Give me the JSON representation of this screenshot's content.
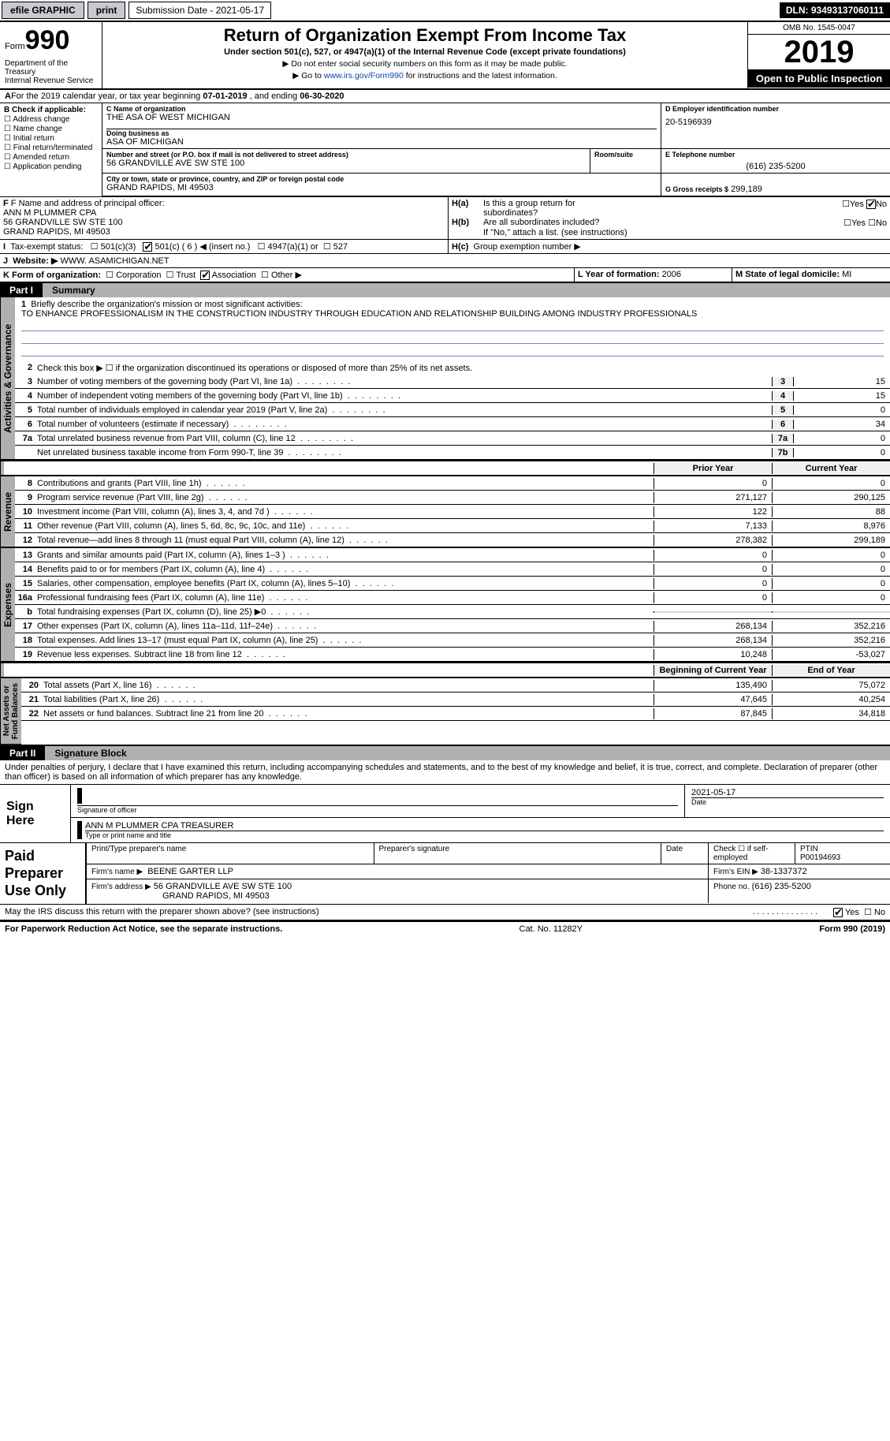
{
  "topbar": {
    "efile": "efile GRAPHIC",
    "print": "print",
    "submission": "Submission Date - 2021-05-17",
    "dln": "DLN: 93493137060111"
  },
  "header": {
    "form_word": "Form",
    "form_num": "990",
    "dept": "Department of the Treasury\nInternal Revenue Service",
    "title": "Return of Organization Exempt From Income Tax",
    "sub": "Under section 501(c), 527, or 4947(a)(1) of the Internal Revenue Code (except private foundations)",
    "note1": "Do not enter social security numbers on this form as it may be made public.",
    "note2_pre": "Go to ",
    "note2_link": "www.irs.gov/Form990",
    "note2_post": " for instructions and the latest information.",
    "omb": "OMB No. 1545-0047",
    "year": "2019",
    "open": "Open to Public Inspection"
  },
  "secA": {
    "text_pre": "For the 2019 calendar year, or tax year beginning ",
    "begin": "07-01-2019",
    "mid": " , and ending ",
    "end": "06-30-2020"
  },
  "boxB": {
    "label": "B Check if applicable:",
    "items": [
      "Address change",
      "Name change",
      "Initial return",
      "Final return/terminated",
      "Amended return",
      "Application pending"
    ]
  },
  "boxC": {
    "label": "C Name of organization",
    "name": "THE ASA OF WEST MICHIGAN",
    "dba_label": "Doing business as",
    "dba": "ASA OF MICHIGAN",
    "addr_label": "Number and street (or P.O. box if mail is not delivered to street address)",
    "addr": "56 GRANDVILLE AVE SW STE 100",
    "room_label": "Room/suite",
    "city_label": "City or town, state or province, country, and ZIP or foreign postal code",
    "city": "GRAND RAPIDS, MI  49503"
  },
  "boxD": {
    "label": "D Employer identification number",
    "val": "20-5196939"
  },
  "boxE": {
    "label": "E Telephone number",
    "val": "(616) 235-5200"
  },
  "boxG": {
    "label": "G Gross receipts $",
    "val": "299,189"
  },
  "boxF": {
    "label": "F Name and address of principal officer:",
    "name": "ANN M PLUMMER CPA",
    "addr1": "56 GRANDVILLE SW STE 100",
    "addr2": "GRAND RAPIDS, MI  49503"
  },
  "boxH": {
    "a1": "Is this a group return for",
    "a2": "subordinates?",
    "b1": "Are all subordinates included?",
    "note": "If \"No,\" attach a list. (see instructions)",
    "c": "Group exemption number ▶"
  },
  "boxI": {
    "label": "Tax-exempt status:",
    "o1": "501(c)(3)",
    "o2": "501(c) ( 6 ) ◀ (insert no.)",
    "o3": "4947(a)(1) or",
    "o4": "527"
  },
  "boxJ": {
    "label": "Website: ▶",
    "val": "WWW. ASAMICHIGAN.NET"
  },
  "boxK": {
    "label": "K Form of organization:",
    "o": [
      "Corporation",
      "Trust",
      "Association",
      "Other ▶"
    ]
  },
  "boxL": {
    "label": "L Year of formation:",
    "val": "2006"
  },
  "boxM": {
    "label": "M State of legal domicile:",
    "val": "MI"
  },
  "part1": {
    "num": "Part I",
    "title": "Summary"
  },
  "p1": {
    "l1": "Briefly describe the organization's mission or most significant activities:",
    "mission": "TO ENHANCE PROFESSIONALISM IN THE CONSTRUCTION INDUSTRY THROUGH EDUCATION AND RELATIONSHIP BUILDING AMONG INDUSTRY PROFESSIONALS",
    "l2": "Check this box ▶ ☐  if the organization discontinued its operations or disposed of more than 25% of its net assets.",
    "rows_gov": [
      {
        "n": "3",
        "d": "Number of voting members of the governing body (Part VI, line 1a)",
        "box": "3",
        "v": "15"
      },
      {
        "n": "4",
        "d": "Number of independent voting members of the governing body (Part VI, line 1b)",
        "box": "4",
        "v": "15"
      },
      {
        "n": "5",
        "d": "Total number of individuals employed in calendar year 2019 (Part V, line 2a)",
        "box": "5",
        "v": "0"
      },
      {
        "n": "6",
        "d": "Total number of volunteers (estimate if necessary)",
        "box": "6",
        "v": "34"
      },
      {
        "n": "7a",
        "d": "Total unrelated business revenue from Part VIII, column (C), line 12",
        "box": "7a",
        "v": "0"
      },
      {
        "n": "",
        "d": "Net unrelated business taxable income from Form 990-T, line 39",
        "box": "7b",
        "v": "0"
      }
    ],
    "hdr": {
      "c1": "Prior Year",
      "c2": "Current Year"
    },
    "rev": [
      {
        "n": "8",
        "d": "Contributions and grants (Part VIII, line 1h)",
        "c1": "0",
        "c2": "0"
      },
      {
        "n": "9",
        "d": "Program service revenue (Part VIII, line 2g)",
        "c1": "271,127",
        "c2": "290,125"
      },
      {
        "n": "10",
        "d": "Investment income (Part VIII, column (A), lines 3, 4, and 7d )",
        "c1": "122",
        "c2": "88"
      },
      {
        "n": "11",
        "d": "Other revenue (Part VIII, column (A), lines 5, 6d, 8c, 9c, 10c, and 11e)",
        "c1": "7,133",
        "c2": "8,976"
      },
      {
        "n": "12",
        "d": "Total revenue—add lines 8 through 11 (must equal Part VIII, column (A), line 12)",
        "c1": "278,382",
        "c2": "299,189"
      }
    ],
    "exp": [
      {
        "n": "13",
        "d": "Grants and similar amounts paid (Part IX, column (A), lines 1–3 )",
        "c1": "0",
        "c2": "0"
      },
      {
        "n": "14",
        "d": "Benefits paid to or for members (Part IX, column (A), line 4)",
        "c1": "0",
        "c2": "0"
      },
      {
        "n": "15",
        "d": "Salaries, other compensation, employee benefits (Part IX, column (A), lines 5–10)",
        "c1": "0",
        "c2": "0"
      },
      {
        "n": "16a",
        "d": "Professional fundraising fees (Part IX, column (A), line 11e)",
        "c1": "0",
        "c2": "0"
      },
      {
        "n": "b",
        "d": "Total fundraising expenses (Part IX, column (D), line 25) ▶0",
        "c1": "",
        "c2": "",
        "shade": true
      },
      {
        "n": "17",
        "d": "Other expenses (Part IX, column (A), lines 11a–11d, 11f–24e)",
        "c1": "268,134",
        "c2": "352,216"
      },
      {
        "n": "18",
        "d": "Total expenses. Add lines 13–17 (must equal Part IX, column (A), line 25)",
        "c1": "268,134",
        "c2": "352,216"
      },
      {
        "n": "19",
        "d": "Revenue less expenses. Subtract line 18 from line 12",
        "c1": "10,248",
        "c2": "-53,027"
      }
    ],
    "hdr2": {
      "c1": "Beginning of Current Year",
      "c2": "End of Year"
    },
    "net": [
      {
        "n": "20",
        "d": "Total assets (Part X, line 16)",
        "c1": "135,490",
        "c2": "75,072"
      },
      {
        "n": "21",
        "d": "Total liabilities (Part X, line 26)",
        "c1": "47,645",
        "c2": "40,254"
      },
      {
        "n": "22",
        "d": "Net assets or fund balances. Subtract line 21 from line 20",
        "c1": "87,845",
        "c2": "34,818"
      }
    ]
  },
  "vtabs": {
    "gov": "Activities & Governance",
    "rev": "Revenue",
    "exp": "Expenses",
    "net": "Net Assets or\nFund Balances"
  },
  "part2": {
    "num": "Part II",
    "title": "Signature Block"
  },
  "sig": {
    "decl": "Under penalties of perjury, I declare that I have examined this return, including accompanying schedules and statements, and to the best of my knowledge and belief, it is true, correct, and complete. Declaration of preparer (other than officer) is based on all information of which preparer has any knowledge.",
    "sign_here": "Sign Here",
    "sig_officer": "Signature of officer",
    "date": "Date",
    "date_val": "2021-05-17",
    "name_title": "ANN M PLUMMER CPA TREASURER",
    "type_name": "Type or print name and title",
    "paid": "Paid Preparer Use Only",
    "h": [
      "Print/Type preparer's name",
      "Preparer's signature",
      "Date"
    ],
    "check": "Check ☐ if self-employed",
    "ptin_l": "PTIN",
    "ptin": "P00194693",
    "firm_l": "Firm's name   ▶",
    "firm": "BEENE GARTER LLP",
    "ein_l": "Firm's EIN ▶",
    "ein": "38-1337372",
    "faddr_l": "Firm's address ▶",
    "faddr": "56 GRANDVILLE AVE SW STE 100",
    "fcity": "GRAND RAPIDS, MI  49503",
    "phone_l": "Phone no.",
    "phone": "(616) 235-5200",
    "discuss": "May the IRS discuss this return with the preparer shown above? (see instructions)"
  },
  "foot": {
    "l": "For Paperwork Reduction Act Notice, see the separate instructions.",
    "m": "Cat. No. 11282Y",
    "r": "Form 990 (2019)"
  }
}
